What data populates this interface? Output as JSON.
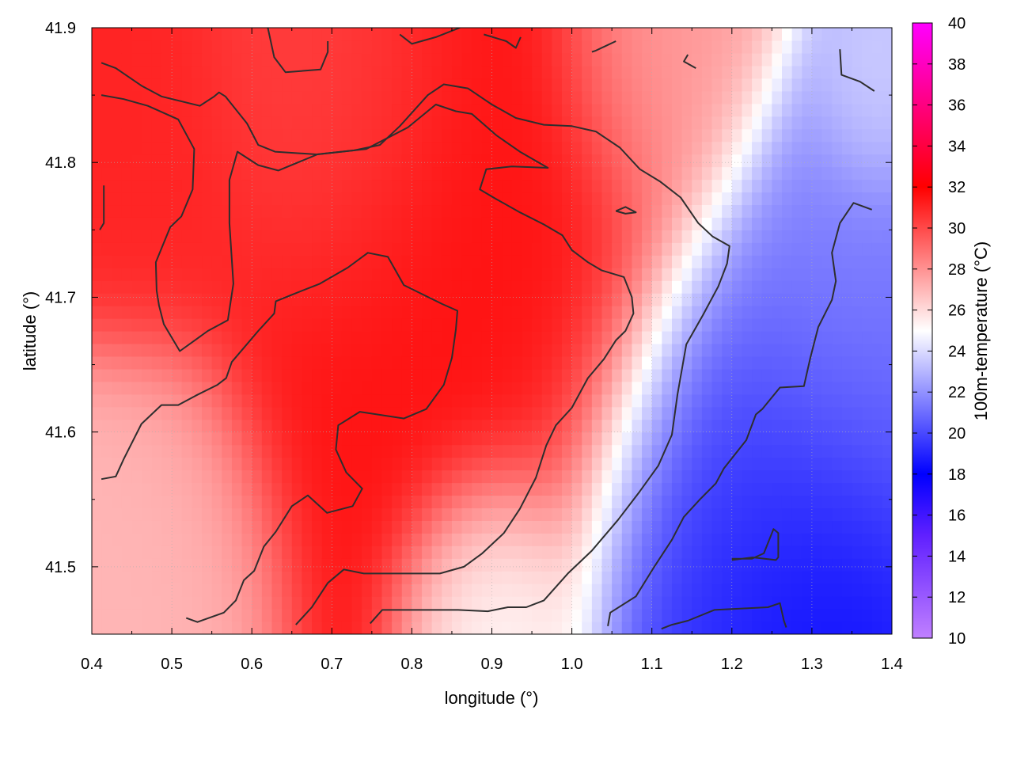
{
  "chart_data": {
    "type": "heatmap",
    "xlabel": "longitude (°)",
    "ylabel": "latitude (°)",
    "colorbar_label": "100m-temperature (°C)",
    "xlim": [
      0.4,
      1.4
    ],
    "ylim": [
      41.45,
      41.9
    ],
    "x_ticks": [
      "0.4",
      "0.5",
      "0.6",
      "0.7",
      "0.8",
      "0.9",
      "1.0",
      "1.1",
      "1.2",
      "1.3",
      "1.4"
    ],
    "y_ticks": [
      "41.5",
      "41.6",
      "41.7",
      "41.8",
      "41.9"
    ],
    "colorbar_range": [
      10,
      40
    ],
    "colorbar_ticks": [
      "10",
      "12",
      "14",
      "16",
      "18",
      "20",
      "22",
      "24",
      "26",
      "28",
      "30",
      "32",
      "34",
      "36",
      "38",
      "40"
    ],
    "colormap": [
      {
        "value": 10,
        "color": "#c080ff"
      },
      {
        "value": 15,
        "color": "#6020ff"
      },
      {
        "value": 18,
        "color": "#0000ff"
      },
      {
        "value": 25,
        "color": "#ffffff"
      },
      {
        "value": 32,
        "color": "#ff0000"
      },
      {
        "value": 36,
        "color": "#ff0080"
      },
      {
        "value": 40,
        "color": "#ff00ff"
      }
    ],
    "field_anchors": [
      {
        "lon": 0.85,
        "lat": 41.74,
        "temp": 31.5,
        "spread": 0.22
      },
      {
        "lon": 0.45,
        "lat": 41.8,
        "temp": 31.0,
        "spread": 0.1
      },
      {
        "lon": 0.7,
        "lat": 41.85,
        "temp": 30.0,
        "spread": 0.12
      },
      {
        "lon": 1.32,
        "lat": 41.47,
        "temp": 18.0,
        "spread": 0.1
      },
      {
        "lon": 1.22,
        "lat": 41.52,
        "temp": 19.0,
        "spread": 0.15
      },
      {
        "lon": 1.35,
        "lat": 41.62,
        "temp": 20.5,
        "spread": 0.15
      },
      {
        "lon": 1.35,
        "lat": 41.72,
        "temp": 22.0,
        "spread": 0.12
      },
      {
        "lon": 1.38,
        "lat": 41.84,
        "temp": 24.0,
        "spread": 0.06
      },
      {
        "lon": 0.9,
        "lat": 41.47,
        "temp": 24.5,
        "spread": 0.08
      },
      {
        "lon": 0.45,
        "lat": 41.5,
        "temp": 27.0,
        "spread": 0.12
      },
      {
        "lon": 1.12,
        "lat": 41.88,
        "temp": 27.5,
        "spread": 0.1
      }
    ],
    "contours": [
      [
        [
          0.412,
          41.874
        ],
        [
          0.43,
          41.87
        ],
        [
          0.462,
          41.857
        ],
        [
          0.487,
          41.849
        ],
        [
          0.535,
          41.842
        ],
        [
          0.553,
          41.849
        ],
        [
          0.559,
          41.852
        ],
        [
          0.567,
          41.849
        ],
        [
          0.594,
          41.829
        ],
        [
          0.608,
          41.813
        ],
        [
          0.629,
          41.808
        ],
        [
          0.681,
          41.806
        ],
        [
          0.728,
          41.809
        ],
        [
          0.76,
          41.813
        ],
        [
          0.785,
          41.827
        ],
        [
          0.82,
          41.85
        ],
        [
          0.84,
          41.858
        ],
        [
          0.87,
          41.855
        ],
        [
          0.9,
          41.843
        ],
        [
          0.93,
          41.833
        ],
        [
          0.965,
          41.828
        ],
        [
          1.0,
          41.827
        ],
        [
          1.03,
          41.823
        ],
        [
          1.06,
          41.811
        ],
        [
          1.085,
          41.795
        ],
        [
          1.11,
          41.786
        ],
        [
          1.136,
          41.774
        ],
        [
          1.158,
          41.755
        ],
        [
          1.176,
          41.745
        ],
        [
          1.197,
          41.738
        ],
        [
          1.194,
          41.725
        ],
        [
          1.183,
          41.708
        ],
        [
          1.164,
          41.687
        ],
        [
          1.143,
          41.665
        ],
        [
          1.132,
          41.628
        ],
        [
          1.125,
          41.598
        ],
        [
          1.108,
          41.575
        ],
        [
          1.085,
          41.556
        ],
        [
          1.058,
          41.535
        ],
        [
          1.025,
          41.512
        ],
        [
          0.995,
          41.495
        ],
        [
          0.965,
          41.475
        ],
        [
          0.943,
          41.47
        ],
        [
          0.92,
          41.47
        ],
        [
          0.895,
          41.467
        ],
        [
          0.858,
          41.468
        ],
        [
          0.818,
          41.468
        ],
        [
          0.763,
          41.468
        ],
        [
          0.748,
          41.458
        ]
      ],
      [
        [
          0.412,
          41.85
        ],
        [
          0.44,
          41.847
        ],
        [
          0.47,
          41.842
        ],
        [
          0.508,
          41.832
        ],
        [
          0.528,
          41.81
        ],
        [
          0.526,
          41.78
        ],
        [
          0.512,
          41.76
        ],
        [
          0.498,
          41.752
        ],
        [
          0.48,
          41.726
        ],
        [
          0.481,
          41.705
        ],
        [
          0.484,
          41.694
        ],
        [
          0.49,
          41.68
        ],
        [
          0.51,
          41.66
        ],
        [
          0.545,
          41.675
        ],
        [
          0.57,
          41.683
        ],
        [
          0.577,
          41.71
        ],
        [
          0.572,
          41.755
        ],
        [
          0.572,
          41.787
        ],
        [
          0.582,
          41.808
        ],
        [
          0.608,
          41.798
        ],
        [
          0.633,
          41.794
        ],
        [
          0.682,
          41.806
        ],
        [
          0.743,
          41.81
        ],
        [
          0.795,
          41.826
        ],
        [
          0.83,
          41.843
        ],
        [
          0.855,
          41.838
        ],
        [
          0.875,
          41.836
        ],
        [
          0.906,
          41.82
        ],
        [
          0.935,
          41.808
        ],
        [
          0.97,
          41.796
        ],
        [
          0.925,
          41.797
        ],
        [
          0.893,
          41.795
        ],
        [
          0.885,
          41.78
        ],
        [
          0.905,
          41.773
        ],
        [
          0.935,
          41.763
        ],
        [
          0.965,
          41.754
        ],
        [
          0.988,
          41.746
        ],
        [
          1.0,
          41.735
        ],
        [
          1.02,
          41.726
        ],
        [
          1.037,
          41.72
        ],
        [
          1.065,
          41.715
        ],
        [
          1.075,
          41.7
        ],
        [
          1.077,
          41.688
        ],
        [
          1.067,
          41.675
        ],
        [
          1.055,
          41.668
        ],
        [
          1.04,
          41.654
        ],
        [
          1.02,
          41.64
        ],
        [
          1.0,
          41.618
        ],
        [
          0.98,
          41.605
        ],
        [
          0.968,
          41.59
        ],
        [
          0.955,
          41.566
        ],
        [
          0.935,
          41.543
        ],
        [
          0.915,
          41.525
        ],
        [
          0.888,
          41.51
        ],
        [
          0.865,
          41.5
        ],
        [
          0.835,
          41.495
        ],
        [
          0.795,
          41.495
        ],
        [
          0.74,
          41.495
        ],
        [
          0.715,
          41.498
        ],
        [
          0.695,
          41.488
        ],
        [
          0.675,
          41.47
        ],
        [
          0.655,
          41.457
        ]
      ],
      [
        [
          0.412,
          41.565
        ],
        [
          0.43,
          41.567
        ],
        [
          0.44,
          41.58
        ],
        [
          0.462,
          41.606
        ],
        [
          0.487,
          41.62
        ],
        [
          0.508,
          41.62
        ],
        [
          0.53,
          41.627
        ],
        [
          0.557,
          41.635
        ],
        [
          0.568,
          41.64
        ],
        [
          0.575,
          41.652
        ],
        [
          0.608,
          41.675
        ],
        [
          0.628,
          41.688
        ],
        [
          0.63,
          41.697
        ],
        [
          0.655,
          41.703
        ],
        [
          0.685,
          41.71
        ],
        [
          0.72,
          41.722
        ],
        [
          0.745,
          41.733
        ],
        [
          0.77,
          41.73
        ],
        [
          0.79,
          41.709
        ],
        [
          0.838,
          41.695
        ],
        [
          0.857,
          41.69
        ],
        [
          0.855,
          41.676
        ],
        [
          0.85,
          41.655
        ],
        [
          0.84,
          41.635
        ],
        [
          0.818,
          41.617
        ],
        [
          0.79,
          41.61
        ],
        [
          0.735,
          41.615
        ],
        [
          0.708,
          41.605
        ],
        [
          0.705,
          41.587
        ],
        [
          0.718,
          41.57
        ],
        [
          0.738,
          41.558
        ],
        [
          0.726,
          41.545
        ],
        [
          0.694,
          41.54
        ],
        [
          0.67,
          41.553
        ],
        [
          0.65,
          41.545
        ],
        [
          0.63,
          41.526
        ],
        [
          0.615,
          41.515
        ],
        [
          0.603,
          41.497
        ],
        [
          0.59,
          41.49
        ],
        [
          0.58,
          41.475
        ],
        [
          0.565,
          41.466
        ],
        [
          0.532,
          41.459
        ],
        [
          0.518,
          41.462
        ]
      ],
      [
        [
          0.415,
          41.783
        ],
        [
          0.415,
          41.755
        ],
        [
          0.41,
          41.75
        ]
      ],
      [
        [
          0.62,
          41.9
        ],
        [
          0.628,
          41.878
        ],
        [
          0.642,
          41.867
        ],
        [
          0.686,
          41.869
        ],
        [
          0.695,
          41.882
        ],
        [
          0.695,
          41.89
        ]
      ],
      [
        [
          0.785,
          41.895
        ],
        [
          0.8,
          41.888
        ],
        [
          0.83,
          41.893
        ],
        [
          0.86,
          41.9
        ]
      ],
      [
        [
          0.89,
          41.895
        ],
        [
          0.918,
          41.89
        ],
        [
          0.93,
          41.885
        ],
        [
          0.936,
          41.893
        ]
      ],
      [
        [
          1.025,
          41.882
        ],
        [
          1.03,
          41.883
        ],
        [
          1.055,
          41.89
        ]
      ],
      [
        [
          1.155,
          41.87
        ],
        [
          1.14,
          41.875
        ],
        [
          1.145,
          41.88
        ]
      ],
      [
        [
          1.335,
          41.884
        ],
        [
          1.337,
          41.865
        ],
        [
          1.36,
          41.86
        ],
        [
          1.378,
          41.853
        ]
      ],
      [
        [
          1.375,
          41.765
        ],
        [
          1.352,
          41.77
        ],
        [
          1.335,
          41.755
        ],
        [
          1.325,
          41.733
        ],
        [
          1.33,
          41.712
        ],
        [
          1.325,
          41.698
        ],
        [
          1.308,
          41.678
        ],
        [
          1.298,
          41.655
        ],
        [
          1.29,
          41.634
        ],
        [
          1.26,
          41.633
        ],
        [
          1.238,
          41.617
        ],
        [
          1.23,
          41.613
        ],
        [
          1.218,
          41.594
        ],
        [
          1.19,
          41.573
        ],
        [
          1.18,
          41.562
        ],
        [
          1.16,
          41.55
        ],
        [
          1.14,
          41.537
        ],
        [
          1.125,
          41.52
        ],
        [
          1.103,
          41.5
        ],
        [
          1.08,
          41.478
        ],
        [
          1.048,
          41.466
        ],
        [
          1.045,
          41.456
        ]
      ],
      [
        [
          1.112,
          41.454
        ],
        [
          1.125,
          41.457
        ],
        [
          1.145,
          41.46
        ],
        [
          1.178,
          41.468
        ],
        [
          1.245,
          41.47
        ],
        [
          1.26,
          41.473
        ],
        [
          1.265,
          41.46
        ],
        [
          1.268,
          41.455
        ]
      ],
      [
        [
          1.2,
          41.505
        ],
        [
          1.226,
          41.507
        ],
        [
          1.255,
          41.505
        ],
        [
          1.258,
          41.507
        ],
        [
          1.258,
          41.525
        ],
        [
          1.252,
          41.528
        ],
        [
          1.24,
          41.51
        ],
        [
          1.225,
          41.506
        ],
        [
          1.2,
          41.506
        ]
      ],
      [
        [
          1.055,
          41.764
        ],
        [
          1.067,
          41.767
        ],
        [
          1.08,
          41.763
        ],
        [
          1.067,
          41.762
        ],
        [
          1.055,
          41.764
        ]
      ]
    ]
  }
}
